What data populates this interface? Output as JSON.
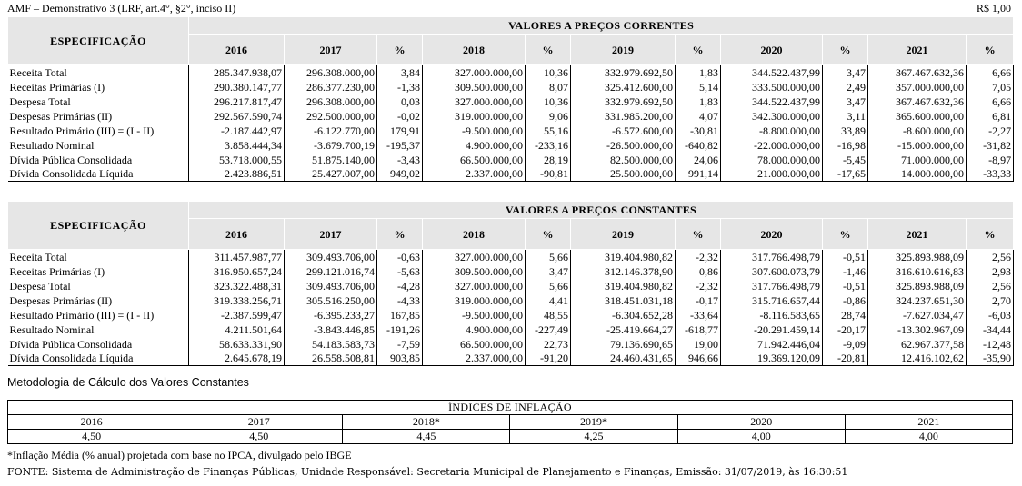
{
  "header": {
    "title": "AMF – Demonstrativo 3 (LRF, art.4°, §2°, inciso II)",
    "unit": "R$ 1,00"
  },
  "columns": {
    "spec": "ESPECIFICAÇÃO",
    "pct": "%",
    "years": [
      "2016",
      "2017",
      "2018",
      "2019",
      "2020",
      "2021"
    ]
  },
  "current": {
    "section_title": "VALORES A PREÇOS CORRENTES",
    "rows": [
      {
        "label": "Receita Total",
        "v": [
          "285.347.938,07",
          "296.308.000,00",
          "3,84",
          "327.000.000,00",
          "10,36",
          "332.979.692,50",
          "1,83",
          "344.522.437,99",
          "3,47",
          "367.467.632,36",
          "6,66"
        ]
      },
      {
        "label": "Receitas Primárias (I)",
        "v": [
          "290.380.147,77",
          "286.377.230,00",
          "-1,38",
          "309.500.000,00",
          "8,07",
          "325.412.600,00",
          "5,14",
          "333.500.000,00",
          "2,49",
          "357.000.000,00",
          "7,05"
        ]
      },
      {
        "label": "Despesa Total",
        "v": [
          "296.217.817,47",
          "296.308.000,00",
          "0,03",
          "327.000.000,00",
          "10,36",
          "332.979.692,50",
          "1,83",
          "344.522.437,99",
          "3,47",
          "367.467.632,36",
          "6,66"
        ]
      },
      {
        "label": "Despesas Primárias (II)",
        "v": [
          "292.567.590,74",
          "292.500.000,00",
          "-0,02",
          "319.000.000,00",
          "9,06",
          "331.985.200,00",
          "4,07",
          "342.300.000,00",
          "3,11",
          "365.600.000,00",
          "6,81"
        ]
      },
      {
        "label": "Resultado Primário (III) = (I - II)",
        "v": [
          "-2.187.442,97",
          "-6.122.770,00",
          "179,91",
          "-9.500.000,00",
          "55,16",
          "-6.572.600,00",
          "-30,81",
          "-8.800.000,00",
          "33,89",
          "-8.600.000,00",
          "-2,27"
        ]
      },
      {
        "label": "Resultado Nominal",
        "v": [
          "3.858.444,34",
          "-3.679.700,19",
          "-195,37",
          "4.900.000,00",
          "-233,16",
          "-26.500.000,00",
          "-640,82",
          "-22.000.000,00",
          "-16,98",
          "-15.000.000,00",
          "-31,82"
        ]
      },
      {
        "label": "Dívida Pública Consolidada",
        "v": [
          "53.718.000,55",
          "51.875.140,00",
          "-3,43",
          "66.500.000,00",
          "28,19",
          "82.500.000,00",
          "24,06",
          "78.000.000,00",
          "-5,45",
          "71.000.000,00",
          "-8,97"
        ]
      },
      {
        "label": "Dívida Consolidada Líquida",
        "v": [
          "2.423.886,51",
          "25.427.007,00",
          "949,02",
          "2.337.000,00",
          "-90,81",
          "25.500.000,00",
          "991,14",
          "21.000.000,00",
          "-17,65",
          "14.000.000,00",
          "-33,33"
        ]
      }
    ]
  },
  "constant": {
    "section_title": "VALORES A PREÇOS CONSTANTES",
    "rows": [
      {
        "label": "Receita Total",
        "v": [
          "311.457.987,77",
          "309.493.706,00",
          "-0,63",
          "327.000.000,00",
          "5,66",
          "319.404.980,82",
          "-2,32",
          "317.766.498,79",
          "-0,51",
          "325.893.988,09",
          "2,56"
        ]
      },
      {
        "label": "Receitas Primárias (I)",
        "v": [
          "316.950.657,24",
          "299.121.016,74",
          "-5,63",
          "309.500.000,00",
          "3,47",
          "312.146.378,90",
          "0,86",
          "307.600.073,79",
          "-1,46",
          "316.610.616,83",
          "2,93"
        ]
      },
      {
        "label": "Despesa Total",
        "v": [
          "323.322.488,31",
          "309.493.706,00",
          "-4,28",
          "327.000.000,00",
          "5,66",
          "319.404.980,82",
          "-2,32",
          "317.766.498,79",
          "-0,51",
          "325.893.988,09",
          "2,56"
        ]
      },
      {
        "label": "Despesas Primárias (II)",
        "v": [
          "319.338.256,71",
          "305.516.250,00",
          "-4,33",
          "319.000.000,00",
          "4,41",
          "318.451.031,18",
          "-0,17",
          "315.716.657,44",
          "-0,86",
          "324.237.651,30",
          "2,70"
        ]
      },
      {
        "label": "Resultado Primário (III) = (I - II)",
        "v": [
          "-2.387.599,47",
          "-6.395.233,27",
          "167,85",
          "-9.500.000,00",
          "48,55",
          "-6.304.652,28",
          "-33,64",
          "-8.116.583,65",
          "28,74",
          "-7.627.034,47",
          "-6,03"
        ]
      },
      {
        "label": "Resultado Nominal",
        "v": [
          "4.211.501,64",
          "-3.843.446,85",
          "-191,26",
          "4.900.000,00",
          "-227,49",
          "-25.419.664,27",
          "-618,77",
          "-20.291.459,14",
          "-20,17",
          "-13.302.967,09",
          "-34,44"
        ]
      },
      {
        "label": "Dívida Pública Consolidada",
        "v": [
          "58.633.331,90",
          "54.183.583,73",
          "-7,59",
          "66.500.000,00",
          "22,73",
          "79.136.690,65",
          "19,00",
          "71.942.446,04",
          "-9,09",
          "62.967.377,58",
          "-12,48"
        ]
      },
      {
        "label": "Dívida Consolidada Líquida",
        "v": [
          "2.645.678,19",
          "26.558.508,81",
          "903,85",
          "2.337.000,00",
          "-91,20",
          "24.460.431,65",
          "946,66",
          "19.369.120,09",
          "-20,81",
          "12.416.102,62",
          "-35,90"
        ]
      }
    ]
  },
  "methodology": "Metodologia de Cálculo dos Valores Constantes",
  "inflation": {
    "title": "ÍNDICES DE INFLAÇÃO",
    "years": [
      "2016",
      "2017",
      "2018*",
      "2019*",
      "2020",
      "2021"
    ],
    "values": [
      "4,50",
      "4,50",
      "4,45",
      "4,25",
      "4,00",
      "4,00"
    ]
  },
  "footnote": "*Inflação Média (% anual) projetada com base no IPCA, divulgado pelo IBGE",
  "source": "FONTE: Sistema de Administração de Finanças Públicas, Unidade Responsável: Secretaria Municipal de Planejamento e Finanças, Emissão: 31/07/2019, às 16:30:51"
}
